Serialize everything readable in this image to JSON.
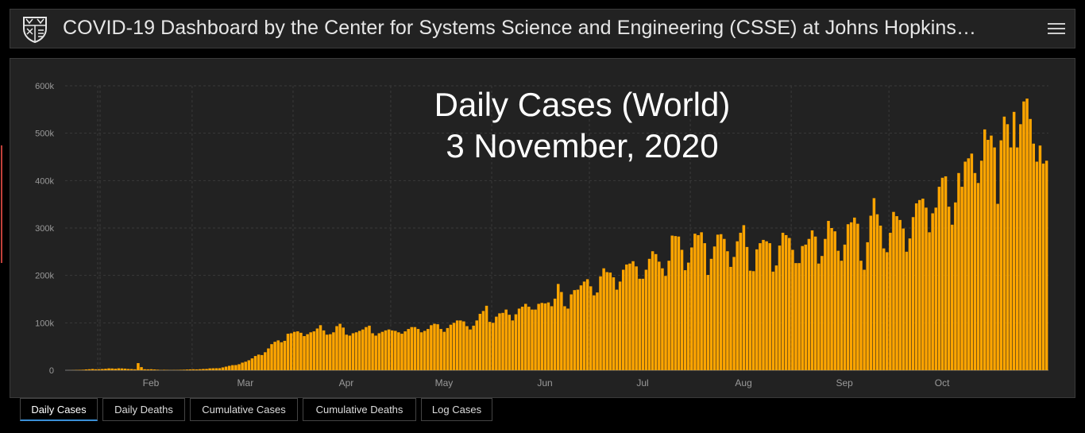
{
  "header": {
    "title": "COVID-19 Dashboard by the Center for Systems Science and Engineering (CSSE) at Johns Hopkins…"
  },
  "overlay": {
    "line1": "Daily Cases (World)",
    "line2": "3 November, 2020"
  },
  "tabs": [
    {
      "label": "Daily Cases",
      "active": true
    },
    {
      "label": "Daily Deaths",
      "active": false
    },
    {
      "label": "Cumulative Cases",
      "active": false
    },
    {
      "label": "Cumulative Deaths",
      "active": false
    },
    {
      "label": "Log Cases",
      "active": false
    }
  ],
  "colors": {
    "bar": "#ffa500",
    "background": "#222222",
    "accent": "#3a8fd6"
  },
  "chart_data": {
    "type": "bar",
    "title": "",
    "xlabel": "",
    "ylabel": "",
    "ylim": [
      0,
      600000
    ],
    "yticks": [
      0,
      100000,
      200000,
      300000,
      400000,
      500000,
      600000
    ],
    "ytick_labels": [
      "0",
      "100k",
      "200k",
      "300k",
      "400k",
      "500k",
      "600k"
    ],
    "x_start": "2020-01-22",
    "x_ticks": [
      {
        "label": "Feb",
        "date": "2020-02-01"
      },
      {
        "label": "Mar",
        "date": "2020-03-01"
      },
      {
        "label": "Apr",
        "date": "2020-04-01"
      },
      {
        "label": "May",
        "date": "2020-05-01"
      },
      {
        "label": "Jun",
        "date": "2020-06-01"
      },
      {
        "label": "Jul",
        "date": "2020-07-01"
      },
      {
        "label": "Aug",
        "date": "2020-08-01"
      },
      {
        "label": "Sep",
        "date": "2020-09-01"
      },
      {
        "label": "Oct",
        "date": "2020-10-01"
      }
    ],
    "values": [
      0,
      100,
      300,
      600,
      800,
      1000,
      1700,
      2100,
      2600,
      2000,
      2100,
      2600,
      3000,
      3900,
      3700,
      3100,
      4000,
      3800,
      3400,
      2700,
      2500,
      2000,
      15000,
      6500,
      2100,
      1900,
      2100,
      1600,
      1100,
      500,
      900,
      600,
      400,
      600,
      600,
      900,
      1100,
      1500,
      1800,
      2000,
      1800,
      2200,
      2700,
      2800,
      3900,
      4100,
      4200,
      4300,
      6000,
      7600,
      9300,
      10700,
      10900,
      12700,
      16000,
      18000,
      21000,
      25000,
      30000,
      33000,
      32000,
      38000,
      46000,
      55000,
      60000,
      63000,
      59000,
      62000,
      77000,
      78000,
      81000,
      82000,
      79000,
      72000,
      76000,
      80000,
      82000,
      88000,
      95000,
      84000,
      75000,
      76000,
      80000,
      93000,
      98000,
      90000,
      75000,
      73000,
      78000,
      80000,
      83000,
      86000,
      91000,
      94000,
      78000,
      73000,
      78000,
      81000,
      84000,
      86000,
      84000,
      83000,
      80000,
      77000,
      82000,
      87000,
      91000,
      91000,
      87000,
      80000,
      83000,
      87000,
      95000,
      98000,
      97000,
      87000,
      81000,
      89000,
      96000,
      100000,
      105000,
      105000,
      103000,
      93000,
      86000,
      94000,
      105000,
      119000,
      125000,
      136000,
      102000,
      100000,
      113000,
      120000,
      121000,
      128000,
      117000,
      105000,
      118000,
      130000,
      134000,
      140000,
      134000,
      128000,
      128000,
      140000,
      142000,
      141000,
      143000,
      135000,
      151000,
      182000,
      165000,
      135000,
      130000,
      160000,
      169000,
      170000,
      179000,
      187000,
      192000,
      177000,
      158000,
      164000,
      198000,
      215000,
      207000,
      206000,
      196000,
      170000,
      187000,
      212000,
      223000,
      225000,
      230000,
      219000,
      193000,
      193000,
      212000,
      235000,
      251000,
      245000,
      229000,
      215000,
      199000,
      231000,
      284000,
      283000,
      282000,
      254000,
      211000,
      227000,
      259000,
      288000,
      285000,
      291000,
      268000,
      201000,
      235000,
      261000,
      286000,
      287000,
      277000,
      251000,
      218000,
      239000,
      272000,
      290000,
      306000,
      260000,
      210000,
      209000,
      255000,
      268000,
      275000,
      272000,
      268000,
      208000,
      221000,
      263000,
      290000,
      285000,
      279000,
      254000,
      226000,
      226000,
      262000,
      265000,
      277000,
      295000,
      282000,
      225000,
      241000,
      277000,
      315000,
      300000,
      293000,
      252000,
      231000,
      265000,
      308000,
      312000,
      322000,
      309000,
      231000,
      212000,
      270000,
      326000,
      363000,
      329000,
      305000,
      257000,
      249000,
      290000,
      334000,
      325000,
      317000,
      299000,
      250000,
      278000,
      323000,
      352000,
      359000,
      362000,
      343000,
      291000,
      331000,
      343000,
      387000,
      406000,
      409000,
      345000,
      307000,
      354000,
      416000,
      387000,
      440000,
      447000,
      457000,
      416000,
      395000,
      442000,
      508000,
      486000,
      495000,
      470000,
      351000,
      485000,
      535000,
      519000,
      470000,
      545000,
      470000,
      519000,
      567000,
      573000,
      530000,
      478000,
      440000,
      474000,
      436000,
      442000
    ],
    "grid": true,
    "legend": "none"
  }
}
